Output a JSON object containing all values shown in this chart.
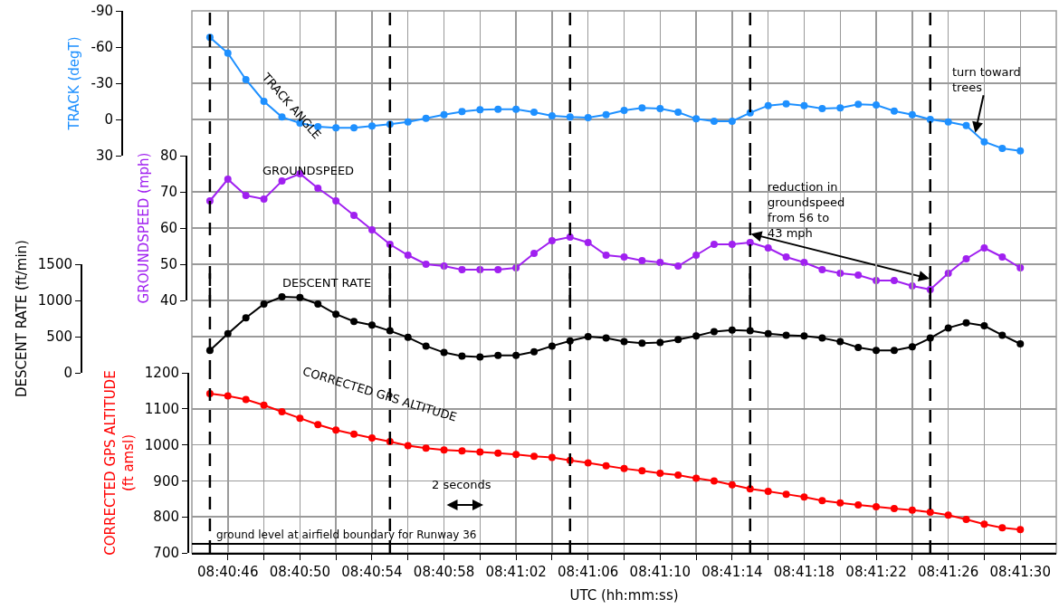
{
  "chart_data": [
    {
      "type": "line",
      "x": [
        8.679167,
        8.679444,
        8.679722,
        8.68,
        8.680278,
        8.680556,
        8.680833,
        8.681111,
        8.681389,
        8.681667,
        8.681944,
        8.682222,
        8.6825,
        8.682778,
        8.683056,
        8.683333,
        8.683611,
        8.683889,
        8.684167,
        8.684444,
        8.684722,
        8.685,
        8.685278,
        8.685556,
        8.685833,
        8.686111,
        8.686389,
        8.686667,
        8.686944,
        8.687222,
        8.6875,
        8.687778,
        8.688056,
        8.688333,
        8.688611,
        8.688889,
        8.689167,
        8.689444,
        8.689722,
        8.69,
        8.690278,
        8.690556,
        8.690833,
        8.691111,
        8.691389,
        8.691667
      ],
      "series": [
        {
          "color": "#1e90ff",
          "values": [
            -68,
            -55,
            -33,
            -15,
            -2,
            3,
            6,
            7,
            7,
            5.5,
            4,
            2,
            -1,
            -4,
            -6.5,
            -8,
            -8.5,
            -8.5,
            -6,
            -3,
            -2,
            -1.5,
            -4,
            -7.5,
            -9.5,
            -9,
            -6,
            -0.5,
            1.5,
            1.5,
            -5.5,
            -11.5,
            -13,
            -11.5,
            -9,
            -9.5,
            -12.5,
            -12,
            -7,
            -4,
            0,
            2,
            5,
            18.5,
            24,
            26
          ]
        }
      ],
      "ylabel": "TRACK (degT)",
      "xlim": [
        8.678889,
        8.692222
      ],
      "xticks": [
        {
          "value": 8.679444,
          "label": null
        },
        {
          "value": 8.68,
          "label": null
        },
        {
          "value": 8.680556,
          "label": null
        },
        {
          "value": 8.681111,
          "label": null
        },
        {
          "value": 8.681667,
          "label": null
        },
        {
          "value": 8.682222,
          "label": null
        },
        {
          "value": 8.682778,
          "label": null
        },
        {
          "value": 8.683333,
          "label": null
        },
        {
          "value": 8.683889,
          "label": null
        },
        {
          "value": 8.684444,
          "label": null
        },
        {
          "value": 8.685,
          "label": null
        },
        {
          "value": 8.685556,
          "label": null
        },
        {
          "value": 8.686111,
          "label": null
        },
        {
          "value": 8.686667,
          "label": null
        },
        {
          "value": 8.687222,
          "label": null
        },
        {
          "value": 8.687778,
          "label": null
        },
        {
          "value": 8.688333,
          "label": null
        },
        {
          "value": 8.688889,
          "label": null
        },
        {
          "value": 8.689444,
          "label": null
        },
        {
          "value": 8.69,
          "label": null
        },
        {
          "value": 8.690556,
          "label": null
        },
        {
          "value": 8.691111,
          "label": null
        },
        {
          "value": 8.691667,
          "label": null
        }
      ],
      "ylim": [
        30,
        -90
      ],
      "yticks": [
        -90,
        -60,
        -30,
        0,
        30
      ],
      "tick_labels": "y",
      "ref_lines": [
        {
          "axis": "x",
          "value": 8.679167,
          "color": "#000000",
          "line_style": "dashed"
        },
        {
          "axis": "x",
          "value": 8.681944,
          "color": "#000000",
          "line_style": "dashed"
        },
        {
          "axis": "x",
          "value": 8.684722,
          "color": "#000000",
          "line_style": "dashed"
        },
        {
          "axis": "x",
          "value": 8.6875,
          "color": "#000000",
          "line_style": "dashed"
        },
        {
          "axis": "x",
          "value": 8.690278,
          "color": "#000000",
          "line_style": "dashed"
        }
      ],
      "annotations": [
        "TRACK ANGLE",
        {
          "text": "turn toward\ntrees",
          "x": 8.690972,
          "y": 11
        }
      ],
      "grid": true,
      "marker": "circle",
      "line_style": "solid"
    },
    {
      "type": "line",
      "x": [
        8.679167,
        8.679444,
        8.679722,
        8.68,
        8.680278,
        8.680556,
        8.680833,
        8.681111,
        8.681389,
        8.681667,
        8.681944,
        8.682222,
        8.6825,
        8.682778,
        8.683056,
        8.683333,
        8.683611,
        8.683889,
        8.684167,
        8.684444,
        8.684722,
        8.685,
        8.685278,
        8.685556,
        8.685833,
        8.686111,
        8.686389,
        8.686667,
        8.686944,
        8.687222,
        8.6875,
        8.687778,
        8.688056,
        8.688333,
        8.688611,
        8.688889,
        8.689167,
        8.689444,
        8.689722,
        8.69,
        8.690278,
        8.690556,
        8.690833,
        8.691111,
        8.691389,
        8.691667
      ],
      "series": [
        {
          "color": "#a020f0",
          "values": [
            67.5,
            73.5,
            69,
            68,
            73,
            75,
            71,
            67.5,
            63.5,
            59.5,
            55.5,
            52.5,
            50,
            49.5,
            48.5,
            48.5,
            48.5,
            49,
            53,
            56.5,
            57.5,
            56,
            52.5,
            52,
            51,
            50.5,
            49.5,
            52.5,
            55.5,
            55.5,
            56,
            54.5,
            52,
            50.5,
            48.5,
            47.5,
            47,
            45.5,
            45.5,
            44,
            43,
            47.5,
            51.5,
            54.5,
            52,
            49
          ]
        }
      ],
      "ylabel": "GROUNDSPEED (mph)",
      "xlim": [
        8.678889,
        8.692222
      ],
      "xticks": [
        {
          "value": 8.679444,
          "label": null
        },
        {
          "value": 8.68,
          "label": null
        },
        {
          "value": 8.680556,
          "label": null
        },
        {
          "value": 8.681111,
          "label": null
        },
        {
          "value": 8.681667,
          "label": null
        },
        {
          "value": 8.682222,
          "label": null
        },
        {
          "value": 8.682778,
          "label": null
        },
        {
          "value": 8.683333,
          "label": null
        },
        {
          "value": 8.683889,
          "label": null
        },
        {
          "value": 8.684444,
          "label": null
        },
        {
          "value": 8.685,
          "label": null
        },
        {
          "value": 8.685556,
          "label": null
        },
        {
          "value": 8.686111,
          "label": null
        },
        {
          "value": 8.686667,
          "label": null
        },
        {
          "value": 8.687222,
          "label": null
        },
        {
          "value": 8.687778,
          "label": null
        },
        {
          "value": 8.688333,
          "label": null
        },
        {
          "value": 8.688889,
          "label": null
        },
        {
          "value": 8.689444,
          "label": null
        },
        {
          "value": 8.69,
          "label": null
        },
        {
          "value": 8.690556,
          "label": null
        },
        {
          "value": 8.691111,
          "label": null
        },
        {
          "value": 8.691667,
          "label": null
        }
      ],
      "ylim": [
        40,
        80
      ],
      "yticks": [
        40,
        50,
        60,
        70,
        80
      ],
      "tick_labels": "y",
      "ref_lines": [
        {
          "axis": "x",
          "value": 8.679167,
          "color": "#000000",
          "line_style": "dashed"
        },
        {
          "axis": "x",
          "value": 8.681944,
          "color": "#000000",
          "line_style": "dashed"
        },
        {
          "axis": "x",
          "value": 8.684722,
          "color": "#000000",
          "line_style": "dashed"
        },
        {
          "axis": "x",
          "value": 8.6875,
          "color": "#000000",
          "line_style": "dashed"
        },
        {
          "axis": "x",
          "value": 8.690278,
          "color": "#000000",
          "line_style": "dashed"
        }
      ],
      "annotations": [
        "GROUNDSPEED",
        "reduction in\ngroundspeed\nfrom 56 to\n43 mph"
      ],
      "grid": true,
      "marker": "circle",
      "line_style": "solid"
    },
    {
      "type": "line",
      "x": [
        8.679167,
        8.679444,
        8.679722,
        8.68,
        8.680278,
        8.680556,
        8.680833,
        8.681111,
        8.681389,
        8.681667,
        8.681944,
        8.682222,
        8.6825,
        8.682778,
        8.683056,
        8.683333,
        8.683611,
        8.683889,
        8.684167,
        8.684444,
        8.684722,
        8.685,
        8.685278,
        8.685556,
        8.685833,
        8.686111,
        8.686389,
        8.686667,
        8.686944,
        8.687222,
        8.6875,
        8.687778,
        8.688056,
        8.688333,
        8.688611,
        8.688889,
        8.689167,
        8.689444,
        8.689722,
        8.69,
        8.690278,
        8.690556,
        8.690833,
        8.691111,
        8.691389,
        8.691667
      ],
      "series": [
        {
          "color": "#000000",
          "values": [
            310,
            540,
            760,
            950,
            1050,
            1040,
            950,
            810,
            710,
            660,
            580,
            490,
            370,
            280,
            230,
            220,
            240,
            240,
            290,
            370,
            440,
            500,
            480,
            430,
            410,
            420,
            460,
            510,
            570,
            590,
            580,
            540,
            520,
            510,
            480,
            430,
            350,
            310,
            310,
            360,
            480,
            620,
            690,
            650,
            520,
            400
          ]
        }
      ],
      "ylabel": "DESCENT RATE (ft/min)",
      "xlim": [
        8.678889,
        8.692222
      ],
      "xticks": [
        {
          "value": 8.679444,
          "label": null
        },
        {
          "value": 8.68,
          "label": null
        },
        {
          "value": 8.680556,
          "label": null
        },
        {
          "value": 8.681111,
          "label": null
        },
        {
          "value": 8.681667,
          "label": null
        },
        {
          "value": 8.682222,
          "label": null
        },
        {
          "value": 8.682778,
          "label": null
        },
        {
          "value": 8.683333,
          "label": null
        },
        {
          "value": 8.683889,
          "label": null
        },
        {
          "value": 8.684444,
          "label": null
        },
        {
          "value": 8.685,
          "label": null
        },
        {
          "value": 8.685556,
          "label": null
        },
        {
          "value": 8.686111,
          "label": null
        },
        {
          "value": 8.686667,
          "label": null
        },
        {
          "value": 8.687222,
          "label": null
        },
        {
          "value": 8.687778,
          "label": null
        },
        {
          "value": 8.688333,
          "label": null
        },
        {
          "value": 8.688889,
          "label": null
        },
        {
          "value": 8.689444,
          "label": null
        },
        {
          "value": 8.69,
          "label": null
        },
        {
          "value": 8.690556,
          "label": null
        },
        {
          "value": 8.691111,
          "label": null
        },
        {
          "value": 8.691667,
          "label": null
        }
      ],
      "ylim": [
        0,
        1500
      ],
      "yticks": [
        0,
        500,
        1000,
        1500
      ],
      "tick_labels": "y",
      "ref_lines": [
        {
          "axis": "x",
          "value": 8.679167,
          "color": "#000000",
          "line_style": "dashed"
        },
        {
          "axis": "x",
          "value": 8.681944,
          "color": "#000000",
          "line_style": "dashed"
        },
        {
          "axis": "x",
          "value": 8.684722,
          "color": "#000000",
          "line_style": "dashed"
        },
        {
          "axis": "x",
          "value": 8.6875,
          "color": "#000000",
          "line_style": "dashed"
        },
        {
          "axis": "x",
          "value": 8.690278,
          "color": "#000000",
          "line_style": "dashed"
        }
      ],
      "annotations": [
        "DESCENT RATE"
      ],
      "grid": true,
      "marker": "circle",
      "line_style": "solid"
    },
    {
      "type": "line",
      "x": [
        8.679167,
        8.679444,
        8.679722,
        8.68,
        8.680278,
        8.680556,
        8.680833,
        8.681111,
        8.681389,
        8.681667,
        8.681944,
        8.682222,
        8.6825,
        8.682778,
        8.683056,
        8.683333,
        8.683611,
        8.683889,
        8.684167,
        8.684444,
        8.684722,
        8.685,
        8.685278,
        8.685556,
        8.685833,
        8.686111,
        8.686389,
        8.686667,
        8.686944,
        8.687222,
        8.6875,
        8.687778,
        8.688056,
        8.688333,
        8.688611,
        8.688889,
        8.689167,
        8.689444,
        8.689722,
        8.69,
        8.690278,
        8.690556,
        8.690833,
        8.691111,
        8.691389,
        8.691667
      ],
      "series": [
        {
          "color": "#ff0000",
          "values": [
            1142,
            1136,
            1126,
            1110,
            1092,
            1074,
            1056,
            1041,
            1030,
            1019,
            1009,
            998,
            991,
            986,
            983,
            980,
            977,
            973,
            968,
            965,
            957,
            950,
            942,
            934,
            928,
            921,
            916,
            907,
            900,
            889,
            878,
            871,
            863,
            855,
            845,
            839,
            833,
            828,
            823,
            819,
            813,
            805,
            793,
            780,
            770,
            765
          ]
        }
      ],
      "xlabel": "UTC (hh:mm:ss)",
      "ylabel": "CORRECTED GPS ALTITUDE\n(ft amsl)",
      "xlim": [
        8.678889,
        8.692222
      ],
      "xticks": [
        {
          "value": 8.679444,
          "label": "08:40:46"
        },
        {
          "value": 8.68,
          "label": null
        },
        {
          "value": 8.680556,
          "label": "08:40:50"
        },
        {
          "value": 8.681111,
          "label": null
        },
        {
          "value": 8.681667,
          "label": "08:40:54"
        },
        {
          "value": 8.682222,
          "label": null
        },
        {
          "value": 8.682778,
          "label": "08:40:58"
        },
        {
          "value": 8.683333,
          "label": null
        },
        {
          "value": 8.683889,
          "label": "08:41:02"
        },
        {
          "value": 8.684444,
          "label": null
        },
        {
          "value": 8.685,
          "label": "08:41:06"
        },
        {
          "value": 8.685556,
          "label": null
        },
        {
          "value": 8.686111,
          "label": "08:41:10"
        },
        {
          "value": 8.686667,
          "label": null
        },
        {
          "value": 8.687222,
          "label": "08:41:14"
        },
        {
          "value": 8.687778,
          "label": null
        },
        {
          "value": 8.688333,
          "label": "08:41:18"
        },
        {
          "value": 8.688889,
          "label": null
        },
        {
          "value": 8.689444,
          "label": "08:41:22"
        },
        {
          "value": 8.69,
          "label": null
        },
        {
          "value": 8.690556,
          "label": "08:41:26"
        },
        {
          "value": 8.691111,
          "label": null
        },
        {
          "value": 8.691667,
          "label": "08:41:30"
        }
      ],
      "ylim": [
        700,
        1200
      ],
      "yticks": [
        700,
        800,
        900,
        1000,
        1100,
        1200
      ],
      "ref_lines": [
        {
          "axis": "x",
          "value": 8.679167,
          "color": "#000000",
          "line_style": "dashed"
        },
        {
          "axis": "x",
          "value": 8.681944,
          "color": "#000000",
          "line_style": "dashed"
        },
        {
          "axis": "x",
          "value": 8.684722,
          "color": "#000000",
          "line_style": "dashed"
        },
        {
          "axis": "x",
          "value": 8.6875,
          "color": "#000000",
          "line_style": "dashed"
        },
        {
          "axis": "x",
          "value": 8.690278,
          "color": "#000000",
          "line_style": "dashed"
        },
        {
          "axis": "y",
          "value": 725,
          "color": "#000000",
          "line_style": "solid",
          "label": "ground level at airfield boundary for Runway 36"
        }
      ],
      "annotations": [
        "CORRECTED GPS ALTITUDE",
        "2 seconds"
      ],
      "grid": true,
      "marker": "circle",
      "line_style": "solid"
    }
  ]
}
